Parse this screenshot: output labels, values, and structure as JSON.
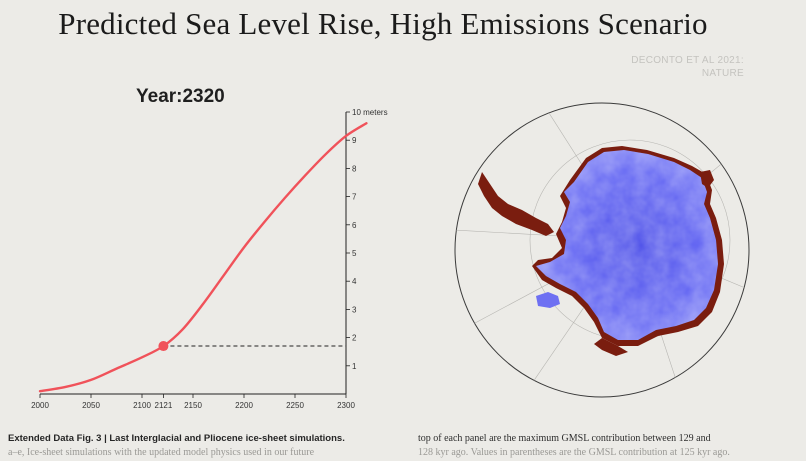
{
  "header": {
    "title": "Predicted Sea Level Rise, High Emissions Scenario",
    "source_line1": "DECONTO ET AL 2021:",
    "source_line2": "NATURE"
  },
  "year_label": "Year:2320",
  "chart_data": {
    "type": "line",
    "title": "",
    "xlabel": "",
    "ylabel": "",
    "y_unit_label": "10 meters",
    "x": [
      2000,
      2025,
      2050,
      2075,
      2100,
      2121,
      2140,
      2160,
      2180,
      2200,
      2220,
      2240,
      2260,
      2280,
      2300,
      2320
    ],
    "y": [
      0.1,
      0.25,
      0.5,
      0.9,
      1.3,
      1.7,
      2.3,
      3.2,
      4.2,
      5.2,
      6.1,
      6.95,
      7.75,
      8.5,
      9.15,
      9.6
    ],
    "xlim": [
      2000,
      2300
    ],
    "ylim": [
      0,
      10
    ],
    "x_ticks": [
      "2000",
      "2050",
      "2100",
      "2121",
      "2150",
      "2200",
      "2250",
      "2300"
    ],
    "y_ticks": [
      "1",
      "2",
      "3",
      "4",
      "5",
      "6",
      "7",
      "8",
      "9"
    ],
    "marker": {
      "x": 2121,
      "y": 1.7
    },
    "line_color": "#f0525a",
    "grid": false
  },
  "map": {
    "ice_color": "#5b5cf0",
    "retreat_color": "#7a1d0f"
  },
  "caption": {
    "col1_bold": "Extended Data Fig. 3 | Last Interglacial and Pliocene ice-sheet simulations.",
    "col1_line2": "a–e, Ice-sheet simulations with the updated model physics used in our future",
    "col2_line1": "top of each panel are the maximum GMSL contribution between 129 and",
    "col2_line2": "128 kyr ago. Values in parentheses are the GMSL contribution at 125 kyr ago."
  }
}
